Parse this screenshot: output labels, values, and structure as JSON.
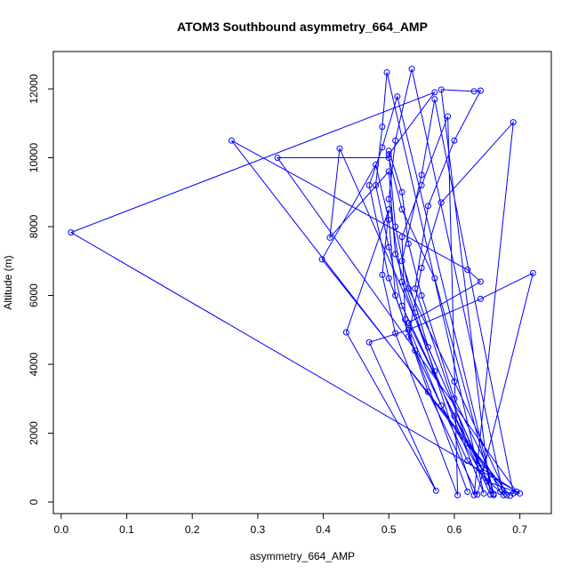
{
  "chart_data": {
    "type": "line",
    "title": "ATOM3 Southbound asymmetry_664_AMP",
    "x_label": "asymmetry_664_AMP",
    "y_label": "Altitude (m)",
    "color": "#0000ff",
    "x": [
      0.5,
      0.52,
      0.53,
      0.55,
      0.6,
      0.67,
      0.69,
      0.57,
      0.55,
      0.52,
      0.56,
      0.65,
      0.7,
      0.015,
      0.57,
      0.5,
      0.51,
      0.53,
      0.6,
      0.68,
      0.26,
      0.62,
      0.64,
      0.53,
      0.64,
      0.695,
      0.33,
      0.5,
      0.52,
      0.57,
      0.66,
      0.425,
      0.41,
      0.5,
      0.51,
      0.54,
      0.63,
      0.69,
      0.58,
      0.55,
      0.53,
      0.62,
      0.675,
      0.535,
      0.51,
      0.5,
      0.52,
      0.57,
      0.645,
      0.497,
      0.49,
      0.48,
      0.5,
      0.52,
      0.6,
      0.655,
      0.58,
      0.63,
      0.64,
      0.6,
      0.56,
      0.54,
      0.62,
      0.685,
      0.398,
      0.48,
      0.5,
      0.51,
      0.56,
      0.635,
      0.72,
      0.64,
      0.53,
      0.47,
      0.572,
      0.435,
      0.5,
      0.49,
      0.51,
      0.605,
      0.59,
      0.55,
      0.52,
      0.525,
      0.58,
      0.66,
      0.513,
      0.49,
      0.47,
      0.5,
      0.54,
      0.62
    ],
    "values": [
      10200,
      9000,
      7500,
      6000,
      3000,
      300,
      250,
      11700,
      9500,
      7000,
      4500,
      600,
      250,
      7830,
      11900,
      10100,
      8000,
      6200,
      3500,
      200,
      10500,
      6750,
      6400,
      5200,
      1000,
      300,
      10000,
      10000,
      8500,
      6500,
      200,
      10270,
      7680,
      9600,
      7200,
      5500,
      200,
      11030,
      8700,
      6800,
      4800,
      1200,
      200,
      12580,
      10500,
      8800,
      6400,
      3800,
      250,
      12480,
      10900,
      9200,
      7400,
      5700,
      2500,
      220,
      11980,
      11930,
      11950,
      10500,
      8600,
      6200,
      1700,
      180,
      7050,
      9800,
      8200,
      6000,
      3200,
      220,
      6650,
      5900,
      5000,
      4640,
      330,
      4930,
      8500,
      6600,
      4900,
      200,
      11200,
      9200,
      7700,
      5300,
      2800,
      240,
      11780,
      10300,
      9200,
      6500,
      4400,
      300
    ],
    "xlim": [
      -0.012,
      0.748
    ],
    "ylim": [
      -335,
      13085
    ],
    "xticks": [
      {
        "value": 0,
        "label": "0.0"
      },
      0.1,
      0.2,
      0.3,
      0.4,
      0.5,
      0.6,
      0.7
    ],
    "yticks": [
      0,
      2000,
      4000,
      6000,
      8000,
      10000,
      12000
    ]
  }
}
